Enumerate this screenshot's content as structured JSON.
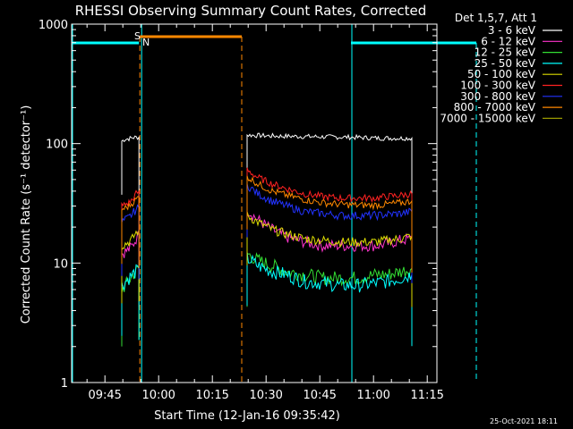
{
  "chart_data": {
    "type": "line",
    "title": "RHESSI Observing Summary Count Rates, Corrected",
    "xlabel": "Start Time (12-Jan-16 09:35:42)",
    "ylabel": "Corrected Count Rate (s⁻¹ detector⁻¹)",
    "yscale": "log",
    "ylim": [
      1,
      1000
    ],
    "xlim_minutes_after_0935_42": [
      0,
      102
    ],
    "x_ticks": [
      "09:45",
      "10:00",
      "10:15",
      "10:30",
      "10:45",
      "11:00",
      "11:15"
    ],
    "y_ticks": [
      "1",
      "10",
      "100",
      "1000"
    ],
    "grid": false,
    "legend": {
      "placement": "top-right",
      "title": "Det 1,5,7, Att 1",
      "entries": [
        {
          "label": "3 - 6 keV",
          "color": "#ffffff"
        },
        {
          "label": "6 - 12 keV",
          "color": "#ff33cc"
        },
        {
          "label": "12 - 25 keV",
          "color": "#33dd33"
        },
        {
          "label": "25 - 50 keV",
          "color": "#00ffff"
        },
        {
          "label": "50 - 100 keV",
          "color": "#dddd00"
        },
        {
          "label": "100 - 300 keV",
          "color": "#ff2222"
        },
        {
          "label": "300 - 800 keV",
          "color": "#2233ff"
        },
        {
          "label": "800 - 7000 keV",
          "color": "#ff8800"
        },
        {
          "label": "7000 - 15000 keV",
          "color": "#999900"
        }
      ]
    },
    "series": [
      {
        "name": "3 - 6 keV",
        "segments": [
          [
            [
              14,
              105
            ],
            [
              15,
              109
            ],
            [
              16,
              110
            ],
            [
              17,
              112
            ],
            [
              18,
              113
            ],
            [
              18.8,
              113
            ]
          ],
          [
            [
              49,
              118
            ],
            [
              55,
              116
            ],
            [
              62,
              115
            ],
            [
              70,
              114
            ],
            [
              78,
              113
            ],
            [
              86,
              111
            ],
            [
              92,
              111
            ],
            [
              95,
              111
            ]
          ]
        ]
      },
      {
        "name": "6 - 12 keV",
        "segments": [
          [
            [
              14,
              12
            ],
            [
              15,
              12.5
            ],
            [
              16,
              13
            ],
            [
              17,
              14
            ],
            [
              18,
              16
            ],
            [
              18.8,
              17
            ]
          ],
          [
            [
              49,
              28
            ],
            [
              52,
              23
            ],
            [
              56,
              19
            ],
            [
              60,
              16.5
            ],
            [
              65,
              15
            ],
            [
              70,
              14
            ],
            [
              75,
              14
            ],
            [
              80,
              14
            ],
            [
              85,
              14
            ],
            [
              88,
              14.5
            ],
            [
              92,
              15.5
            ],
            [
              95,
              16
            ]
          ]
        ]
      },
      {
        "name": "12 - 25 keV",
        "segments": [
          [
            [
              14,
              6
            ],
            [
              15,
              6.5
            ],
            [
              16,
              7
            ],
            [
              17,
              8
            ],
            [
              18,
              8.5
            ],
            [
              18.8,
              9
            ]
          ],
          [
            [
              49,
              12
            ],
            [
              52,
              10.5
            ],
            [
              56,
              9.5
            ],
            [
              60,
              8.5
            ],
            [
              65,
              8
            ],
            [
              70,
              7.5
            ],
            [
              75,
              7.5
            ],
            [
              80,
              7.5
            ],
            [
              85,
              8
            ],
            [
              88,
              8
            ],
            [
              92,
              8.5
            ],
            [
              95,
              9
            ]
          ]
        ]
      },
      {
        "name": "25 - 50 keV",
        "segments": [
          [
            [
              14,
              6.5
            ],
            [
              15,
              7
            ],
            [
              16,
              7.5
            ],
            [
              17,
              8
            ],
            [
              18,
              8.5
            ],
            [
              18.8,
              9
            ]
          ],
          [
            [
              49,
              11
            ],
            [
              52,
              9.5
            ],
            [
              56,
              8.5
            ],
            [
              60,
              8
            ],
            [
              65,
              7
            ],
            [
              70,
              6.8
            ],
            [
              75,
              6.5
            ],
            [
              80,
              6.5
            ],
            [
              85,
              6.8
            ],
            [
              88,
              7
            ],
            [
              92,
              7.5
            ],
            [
              95,
              8
            ]
          ]
        ]
      },
      {
        "name": "50 - 100 keV",
        "segments": [
          [
            [
              14,
              14
            ],
            [
              15,
              14.5
            ],
            [
              16,
              15
            ],
            [
              17,
              16
            ],
            [
              18,
              18
            ],
            [
              18.8,
              19
            ]
          ],
          [
            [
              49,
              25
            ],
            [
              52,
              22
            ],
            [
              56,
              19
            ],
            [
              60,
              17.5
            ],
            [
              65,
              16
            ],
            [
              70,
              15.5
            ],
            [
              75,
              15
            ],
            [
              80,
              15
            ],
            [
              85,
              15
            ],
            [
              88,
              15.5
            ],
            [
              92,
              16
            ],
            [
              95,
              17
            ]
          ]
        ]
      },
      {
        "name": "100 - 300 keV",
        "segments": [
          [
            [
              14,
              30
            ],
            [
              15,
              31
            ],
            [
              16,
              32
            ],
            [
              17,
              34
            ],
            [
              18,
              38
            ],
            [
              18.8,
              40
            ]
          ],
          [
            [
              49,
              60
            ],
            [
              52,
              52
            ],
            [
              56,
              46
            ],
            [
              60,
              42
            ],
            [
              65,
              38
            ],
            [
              70,
              36
            ],
            [
              75,
              35
            ],
            [
              80,
              35
            ],
            [
              85,
              35
            ],
            [
              88,
              36
            ],
            [
              92,
              37
            ],
            [
              95,
              38
            ]
          ]
        ]
      },
      {
        "name": "300 - 800 keV",
        "segments": [
          [
            [
              14,
              22
            ],
            [
              15,
              23
            ],
            [
              16,
              24
            ],
            [
              17,
              26
            ],
            [
              18,
              28
            ],
            [
              18.8,
              29
            ]
          ],
          [
            [
              49,
              45
            ],
            [
              52,
              38
            ],
            [
              56,
              33
            ],
            [
              60,
              30
            ],
            [
              65,
              27
            ],
            [
              70,
              26
            ],
            [
              75,
              25
            ],
            [
              80,
              25
            ],
            [
              85,
              25
            ],
            [
              88,
              25.5
            ],
            [
              92,
              26
            ],
            [
              95,
              27
            ]
          ]
        ]
      },
      {
        "name": "800 - 7000 keV",
        "segments": [
          [
            [
              14,
              28
            ],
            [
              15,
              29
            ],
            [
              16,
              30
            ],
            [
              17,
              32
            ],
            [
              18,
              34
            ],
            [
              18.8,
              36
            ]
          ],
          [
            [
              49,
              53
            ],
            [
              52,
              46
            ],
            [
              56,
              40
            ],
            [
              60,
              37
            ],
            [
              65,
              34
            ],
            [
              70,
              32
            ],
            [
              75,
              31
            ],
            [
              80,
              30.5
            ],
            [
              85,
              30.5
            ],
            [
              88,
              31
            ],
            [
              92,
              32
            ],
            [
              95,
              33
            ]
          ]
        ]
      },
      {
        "name": "7000 - 15000 keV",
        "segments": []
      }
    ]
  },
  "annotations": {
    "saa_label": "S",
    "night_label": "N",
    "saa_color": "#ff8800",
    "night_color": "#00ffff"
  },
  "timestamp": "25-Oct-2021 18:11"
}
